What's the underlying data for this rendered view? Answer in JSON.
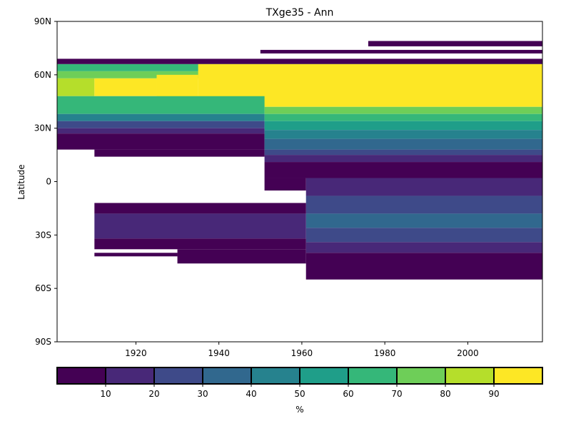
{
  "chart_data": {
    "type": "heatmap",
    "title": "TXge35 - Ann",
    "ylabel": "Latitude",
    "xlabel": "",
    "xlim": [
      1901,
      2018
    ],
    "ylim": [
      -90,
      90
    ],
    "xticks": [
      1920,
      1940,
      1960,
      1980,
      2000
    ],
    "yticks": [
      {
        "value": 90,
        "label": "90N"
      },
      {
        "value": 60,
        "label": "60N"
      },
      {
        "value": 30,
        "label": "30N"
      },
      {
        "value": 0,
        "label": "0"
      },
      {
        "value": -30,
        "label": "30S"
      },
      {
        "value": -60,
        "label": "60S"
      },
      {
        "value": -90,
        "label": "90S"
      }
    ],
    "colorbar": {
      "label": "%",
      "ticks": [
        10,
        20,
        30,
        40,
        50,
        60,
        70,
        80,
        90
      ],
      "range": [
        0,
        100
      ],
      "bins": [
        "#440154",
        "#482878",
        "#3e4a89",
        "#31688e",
        "#26828e",
        "#1f9e89",
        "#35b779",
        "#6ece58",
        "#b5de2b",
        "#fde725"
      ]
    },
    "regions": [
      {
        "x": [
          1901,
          2018
        ],
        "lat": [
          66,
          69
        ],
        "value": 5
      },
      {
        "x": [
          1901,
          2018
        ],
        "lat": [
          62,
          66
        ],
        "value": 65
      },
      {
        "x": [
          1901,
          2018
        ],
        "lat": [
          58,
          62
        ],
        "value": 75
      },
      {
        "x": [
          1901,
          1910
        ],
        "lat": [
          48,
          58
        ],
        "value": 85
      },
      {
        "x": [
          1910,
          1925
        ],
        "lat": [
          48,
          58
        ],
        "value": 95
      },
      {
        "x": [
          1925,
          1935
        ],
        "lat": [
          44,
          60
        ],
        "value": 95
      },
      {
        "x": [
          1935,
          2018
        ],
        "lat": [
          42,
          66
        ],
        "value": 95
      },
      {
        "x": [
          1901,
          1951
        ],
        "lat": [
          38,
          48
        ],
        "value": 65
      },
      {
        "x": [
          1901,
          1951
        ],
        "lat": [
          34,
          38
        ],
        "value": 45
      },
      {
        "x": [
          1901,
          1951
        ],
        "lat": [
          30,
          34
        ],
        "value": 25
      },
      {
        "x": [
          1901,
          1951
        ],
        "lat": [
          27,
          30
        ],
        "value": 15
      },
      {
        "x": [
          1901,
          1951
        ],
        "lat": [
          18,
          27
        ],
        "value": 5
      },
      {
        "x": [
          1910,
          1951
        ],
        "lat": [
          14,
          18
        ],
        "value": 5
      },
      {
        "x": [
          1951,
          2018
        ],
        "lat": [
          38,
          42
        ],
        "value": 75
      },
      {
        "x": [
          1951,
          2018
        ],
        "lat": [
          34,
          38
        ],
        "value": 65
      },
      {
        "x": [
          1951,
          2018
        ],
        "lat": [
          29,
          34
        ],
        "value": 55
      },
      {
        "x": [
          1951,
          2018
        ],
        "lat": [
          24,
          29
        ],
        "value": 45
      },
      {
        "x": [
          1951,
          2018
        ],
        "lat": [
          18,
          24
        ],
        "value": 35
      },
      {
        "x": [
          1951,
          2018
        ],
        "lat": [
          15,
          18
        ],
        "value": 25
      },
      {
        "x": [
          1951,
          2018
        ],
        "lat": [
          11,
          15
        ],
        "value": 15
      },
      {
        "x": [
          1951,
          2018
        ],
        "lat": [
          2,
          11
        ],
        "value": 5
      },
      {
        "x": [
          1951,
          1961
        ],
        "lat": [
          -5,
          2
        ],
        "value": 5
      },
      {
        "x": [
          1961,
          2018
        ],
        "lat": [
          -8,
          2
        ],
        "value": 15
      },
      {
        "x": [
          1961,
          2018
        ],
        "lat": [
          -18,
          -8
        ],
        "value": 25
      },
      {
        "x": [
          1961,
          2018
        ],
        "lat": [
          -26,
          -18
        ],
        "value": 35
      },
      {
        "x": [
          1961,
          2018
        ],
        "lat": [
          -34,
          -26
        ],
        "value": 25
      },
      {
        "x": [
          1961,
          2018
        ],
        "lat": [
          -40,
          -34
        ],
        "value": 15
      },
      {
        "x": [
          1961,
          2018
        ],
        "lat": [
          -55,
          -40
        ],
        "value": 5
      },
      {
        "x": [
          1910,
          1961
        ],
        "lat": [
          -12,
          -18
        ],
        "value": 5
      },
      {
        "x": [
          1910,
          1961
        ],
        "lat": [
          -18,
          -32
        ],
        "value": 15
      },
      {
        "x": [
          1910,
          1961
        ],
        "lat": [
          -32,
          -38
        ],
        "value": 5
      },
      {
        "x": [
          1930,
          1961
        ],
        "lat": [
          -38,
          -46
        ],
        "value": 5
      },
      {
        "x": [
          1910,
          1930
        ],
        "lat": [
          -40,
          -42
        ],
        "value": 5
      },
      {
        "x": [
          1950,
          2018
        ],
        "lat": [
          72,
          74
        ],
        "value": 5
      },
      {
        "x": [
          1976,
          2018
        ],
        "lat": [
          76,
          79
        ],
        "value": 5
      }
    ]
  }
}
